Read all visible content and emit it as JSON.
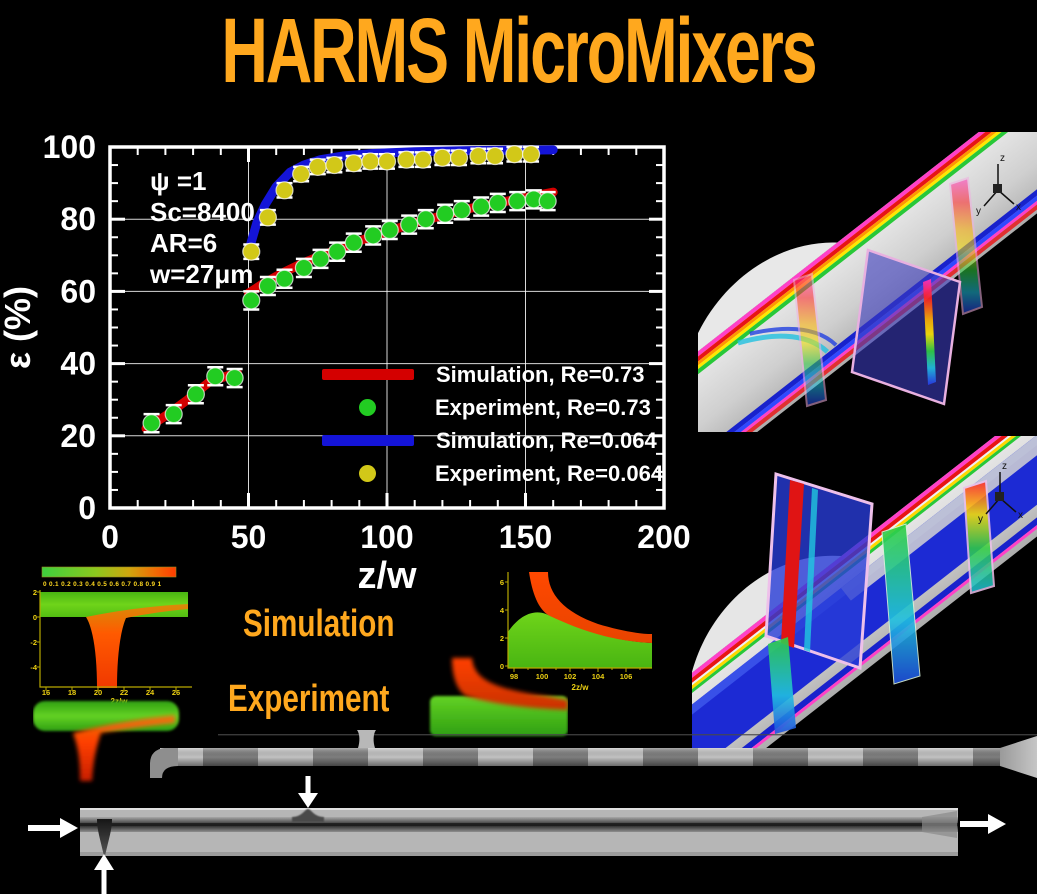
{
  "page_title": "HARMS MicroMixers",
  "colors": {
    "accent_orange": "#FFA81E",
    "sim_re073": "#D40000",
    "exp_re073": "#22CC22",
    "sim_re0064": "#1414D8",
    "exp_re0064": "#D2C818",
    "chart_foreground": "#FFFFFF",
    "mini_axis_text": "#ECD012"
  },
  "section_labels": {
    "simulation": "Simulation",
    "experiment": "Experiment"
  },
  "axis_triad": {
    "z": "z",
    "y": "y",
    "x": "x"
  },
  "chart_data": [
    {
      "type": "line+scatter",
      "title": "",
      "xlabel": "z/w",
      "ylabel": "ε (%)",
      "xlim": [
        0,
        200
      ],
      "ylim": [
        0,
        100
      ],
      "x_ticks": [
        0,
        50,
        100,
        150,
        200
      ],
      "y_ticks": [
        0,
        20,
        40,
        60,
        80,
        100
      ],
      "x_minor_step": 10,
      "y_minor_step": 5,
      "grid_x": [
        50,
        100,
        150
      ],
      "grid_y": [
        20,
        40,
        60,
        80
      ],
      "grid": true,
      "legend_position": "inside-bottom-right",
      "annotations": [
        "ψ =1",
        "Sc=8400",
        "AR=6",
        "w=27μm"
      ],
      "series": [
        {
          "name": "Simulation, Re=0.73",
          "type": "line",
          "color": "#D40000",
          "segments": [
            [
              [
                13,
                22
              ],
              [
                20,
                25.5
              ],
              [
                28,
                30
              ],
              [
                36,
                35
              ],
              [
                46,
                37.5
              ]
            ],
            [
              [
                50,
                59.5
              ],
              [
                55,
                62
              ],
              [
                62,
                65
              ],
              [
                70,
                68
              ],
              [
                80,
                71
              ],
              [
                90,
                74
              ],
              [
                100,
                76.5
              ],
              [
                110,
                79
              ],
              [
                120,
                81
              ],
              [
                130,
                83
              ],
              [
                140,
                84.5
              ],
              [
                150,
                86
              ],
              [
                160,
                87.5
              ]
            ]
          ]
        },
        {
          "name": "Experiment, Re=0.73",
          "type": "scatter",
          "color": "#22CC22",
          "error": 2.5,
          "points": [
            [
              15,
              23.5
            ],
            [
              23,
              26
            ],
            [
              31,
              31.5
            ],
            [
              38,
              36.5
            ],
            [
              45,
              36
            ],
            [
              51,
              57.5
            ],
            [
              57,
              61.5
            ],
            [
              63,
              63.5
            ],
            [
              70,
              66.5
            ],
            [
              76,
              69
            ],
            [
              82,
              71
            ],
            [
              88,
              73.5
            ],
            [
              95,
              75.5
            ],
            [
              101,
              77
            ],
            [
              108,
              78.5
            ],
            [
              114,
              80
            ],
            [
              121,
              81.5
            ],
            [
              127,
              82.5
            ],
            [
              134,
              83.5
            ],
            [
              140,
              84.5
            ],
            [
              147,
              85
            ],
            [
              153,
              85.5
            ],
            [
              158,
              85
            ]
          ]
        },
        {
          "name": "Simulation, Re=0.064",
          "type": "line",
          "color": "#1414D8",
          "segments": [
            [
              [
                50,
                71
              ],
              [
                53,
                79
              ],
              [
                56,
                84
              ],
              [
                60,
                89
              ],
              [
                65,
                93
              ],
              [
                70,
                95
              ],
              [
                76,
                96.5
              ],
              [
                84,
                97.5
              ],
              [
                95,
                98.2
              ],
              [
                110,
                98.7
              ],
              [
                130,
                99
              ],
              [
                160,
                99.2
              ]
            ]
          ]
        },
        {
          "name": "Experiment, Re=0.064",
          "type": "scatter",
          "color": "#D2C818",
          "error": 2,
          "points": [
            [
              51,
              71
            ],
            [
              57,
              80.5
            ],
            [
              63,
              88
            ],
            [
              69,
              92.5
            ],
            [
              75,
              94.5
            ],
            [
              81,
              95
            ],
            [
              88,
              95.5
            ],
            [
              94,
              96
            ],
            [
              100,
              96
            ],
            [
              107,
              96.5
            ],
            [
              113,
              96.5
            ],
            [
              120,
              97
            ],
            [
              126,
              97
            ],
            [
              133,
              97.5
            ],
            [
              139,
              97.5
            ],
            [
              146,
              98
            ],
            [
              152,
              98
            ]
          ]
        }
      ]
    },
    {
      "type": "contour",
      "xlabel": "2z/w",
      "x_ticks": [
        "16",
        "18",
        "20",
        "22",
        "24",
        "26"
      ],
      "y_ticks": [
        "2",
        "0",
        "-2",
        "-4"
      ],
      "colorbar": {
        "min": 0,
        "max": 1,
        "tick_labels": "0 0.1 0.2 0.3 0.4 0.5 0.6 0.7 0.8 0.9 1"
      }
    },
    {
      "type": "contour",
      "xlabel": "2z/w",
      "x_ticks": [
        "98",
        "100",
        "102",
        "104",
        "106"
      ],
      "y_ticks": [
        "6",
        "4",
        "2",
        "0"
      ]
    }
  ]
}
